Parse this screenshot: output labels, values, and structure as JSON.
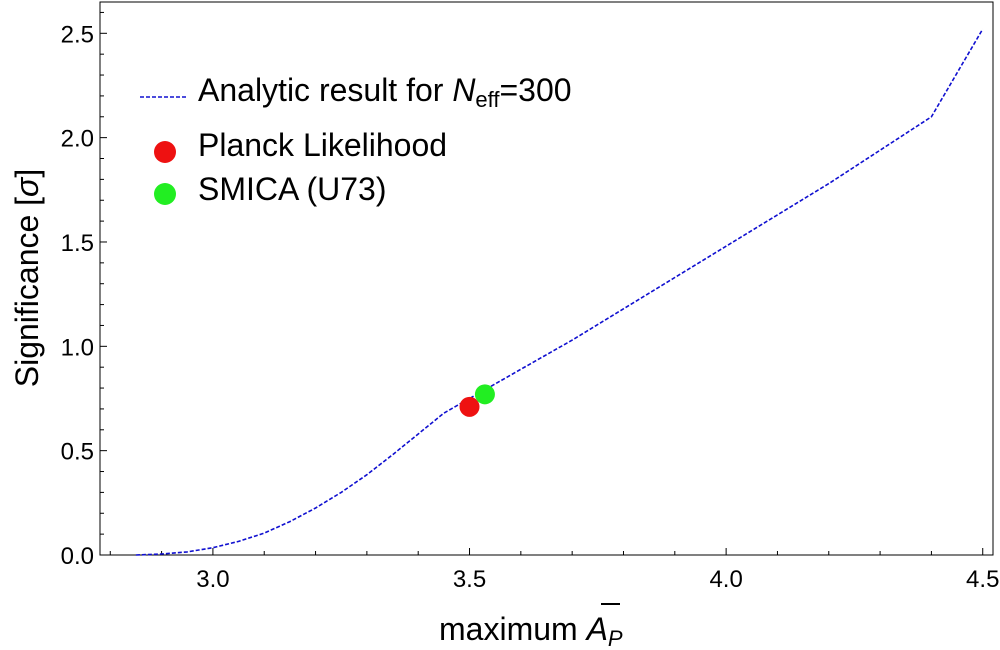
{
  "chart_data": {
    "type": "line",
    "xlabel": {
      "main": "maximum ",
      "symbol": "A",
      "subscript": "P"
    },
    "ylabel": {
      "main": "Significance [",
      "symbol": "σ",
      "close": "]"
    },
    "xlim": [
      2.78,
      4.52
    ],
    "ylim": [
      0.0,
      2.65
    ],
    "xticks": [
      3.0,
      3.5,
      4.0,
      4.5
    ],
    "xtick_labels": [
      "3.0",
      "3.5",
      "4.0",
      "4.5"
    ],
    "yticks": [
      0.0,
      0.5,
      1.0,
      1.5,
      2.0,
      2.5
    ],
    "ytick_labels": [
      "0.0",
      "0.5",
      "1.0",
      "1.5",
      "2.0",
      "2.5"
    ],
    "grid": false,
    "legend_position": "top-left",
    "series": [
      {
        "name": {
          "pre": "Analytic result for ",
          "var": "N",
          "sub": "eff",
          "post": "=300"
        },
        "kind": "line",
        "style": "dashed",
        "color": "#1010d0",
        "x": [
          2.85,
          2.9,
          2.95,
          3.0,
          3.05,
          3.1,
          3.15,
          3.2,
          3.25,
          3.3,
          3.35,
          3.4,
          3.45,
          3.5,
          3.55,
          3.6,
          3.7,
          3.8,
          3.9,
          4.0,
          4.1,
          4.2,
          4.3,
          4.4,
          4.5
        ],
        "y": [
          0.0,
          0.005,
          0.015,
          0.035,
          0.065,
          0.105,
          0.16,
          0.225,
          0.3,
          0.385,
          0.48,
          0.58,
          0.68,
          0.75,
          0.82,
          0.89,
          1.03,
          1.18,
          1.33,
          1.48,
          1.63,
          1.78,
          1.94,
          2.1,
          2.52
        ]
      },
      {
        "name": "Planck Likelihood",
        "kind": "point",
        "color": "#ee1111",
        "x": [
          3.5
        ],
        "y": [
          0.71
        ]
      },
      {
        "name": "SMICA (U73)",
        "kind": "point",
        "color": "#22ee22",
        "x": [
          3.53
        ],
        "y": [
          0.77
        ]
      }
    ]
  }
}
